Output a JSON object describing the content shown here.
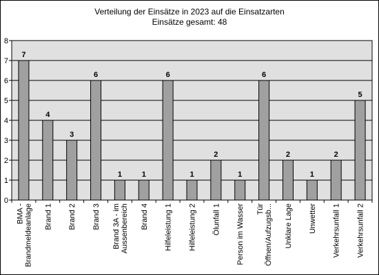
{
  "chart_data": {
    "type": "bar",
    "title": "Verteilung der Einsätze in 2023 auf die Einsatzarten",
    "subtitle": "Einsätze gesamt: 48",
    "categories": [
      [
        "BMA -",
        "Brandmeldeanlage"
      ],
      [
        "Brand 1"
      ],
      [
        "Brand 2"
      ],
      [
        "Brand 3"
      ],
      [
        "Brand 3A - im",
        "Aussenbereich"
      ],
      [
        "Brand 4"
      ],
      [
        "Hilfeleistung 1"
      ],
      [
        "Hilfeleistung 2"
      ],
      [
        "Ölunfall 1"
      ],
      [
        "Person im Wasser"
      ],
      [
        "Tür",
        "Öffnen/Aufzugsb..."
      ],
      [
        "Unklare Lage"
      ],
      [
        "Unwetter"
      ],
      [
        "Verkehrsunfall 1"
      ],
      [
        "Verkehrsunfall 2"
      ]
    ],
    "values": [
      7,
      4,
      3,
      6,
      1,
      1,
      6,
      1,
      2,
      1,
      6,
      2,
      1,
      2,
      5
    ],
    "xlabel": "",
    "ylabel": "",
    "ylim": [
      0,
      8
    ],
    "yticks": [
      0,
      1,
      2,
      3,
      4,
      5,
      6,
      7,
      8
    ],
    "grid": true,
    "data_labels": true,
    "colors": {
      "bar": "#a0a0a0",
      "plot_background": "#e0e0e0",
      "gridline": "#000000"
    }
  }
}
